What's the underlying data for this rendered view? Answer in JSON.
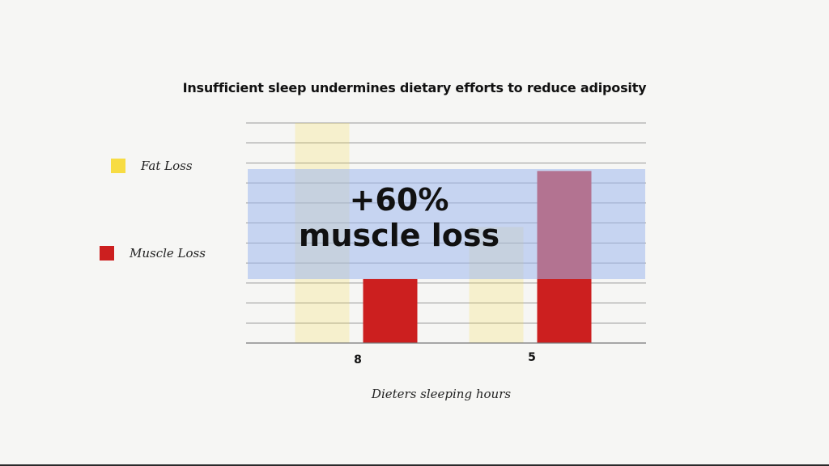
{
  "title": "Insufficient sleep undermines dietary efforts to reduce adiposity",
  "legend": [
    {
      "label": "Fat Loss",
      "color": "#f7dc43"
    },
    {
      "label": "Muscle Loss",
      "color": "#cc1f1f"
    }
  ],
  "callout": {
    "line1": "+60%",
    "line2": "muscle loss",
    "band_color": "#9fb8ee"
  },
  "chart_data": {
    "type": "bar",
    "xlabel": "Dieters sleeping hours",
    "ylabel": "",
    "categories": [
      "8",
      "5"
    ],
    "ylim": [
      0,
      11
    ],
    "grid": true,
    "legend_position": "left",
    "series": [
      {
        "name": "Fat Loss",
        "color": "#f7dc43",
        "values": [
          11,
          5.8
        ]
      },
      {
        "name": "Muscle Loss",
        "color": "#cc1f1f",
        "values": [
          3.2,
          8.6
        ]
      }
    ]
  }
}
